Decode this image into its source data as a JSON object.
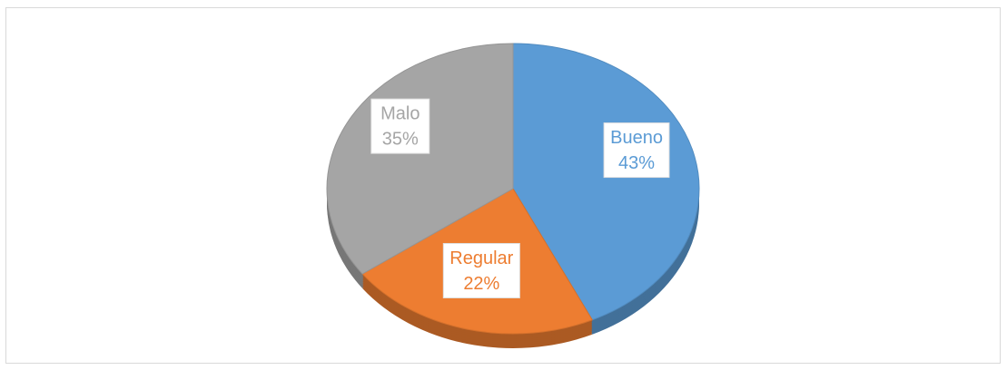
{
  "chart_data": {
    "type": "pie",
    "categories": [
      "Bueno",
      "Regular",
      "Malo"
    ],
    "values": [
      43,
      22,
      35
    ],
    "value_labels": [
      "43%",
      "22%",
      "35%"
    ],
    "colors": [
      "#5b9bd5",
      "#ed7d31",
      "#a5a5a5"
    ]
  }
}
